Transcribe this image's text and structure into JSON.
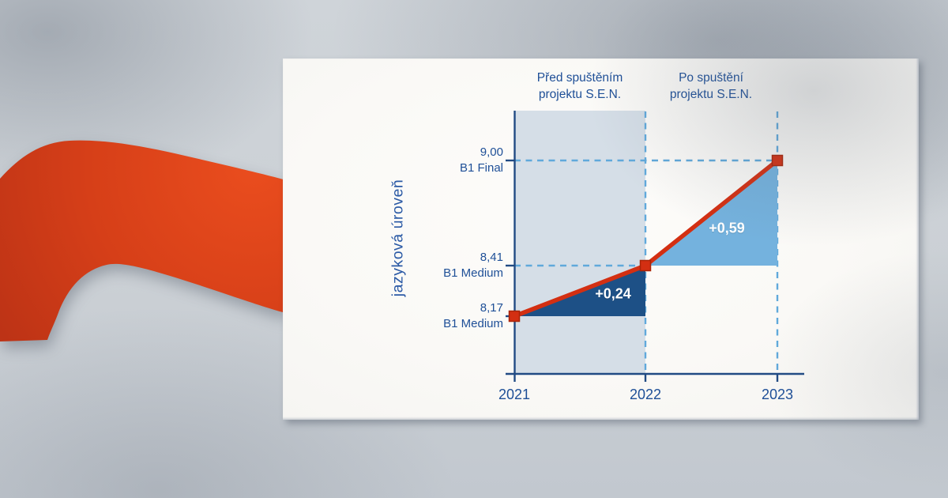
{
  "background": {
    "base_color": "#cbd0d5",
    "ribbon": {
      "name": "red-curved-ribbon",
      "color_bright": "#ea4d1e",
      "color_dark": "#bd3316"
    }
  },
  "card": {
    "bg_color": "#faf9f6"
  },
  "chart_data": {
    "type": "line",
    "title": "",
    "x": [
      "2021",
      "2022",
      "2023"
    ],
    "series": [
      {
        "name": "jazyková úroveň",
        "values": [
          8.17,
          8.41,
          9.0
        ]
      }
    ],
    "ylabel": "jazyková úroveň",
    "xlabel": "",
    "value_labels": [
      {
        "value": "8,17",
        "level": "B1 Medium"
      },
      {
        "value": "8,41",
        "level": "B1 Medium"
      },
      {
        "value": "9,00",
        "level": "B1 Final"
      }
    ],
    "phase_headers": [
      {
        "line1": "Před spuštěním",
        "line2": "projektu S.E.N."
      },
      {
        "line1": "Po spuštění",
        "line2": "projektu S.E.N."
      }
    ],
    "annotations": [
      {
        "label": "+0,24",
        "from": "2021",
        "to": "2022",
        "delta": 0.24
      },
      {
        "label": "+0,59",
        "from": "2022",
        "to": "2023",
        "delta": 0.59
      }
    ],
    "ylim": [
      8.0,
      9.3
    ],
    "grid": "dashed reference lines at data levels",
    "legend_position": "none",
    "colors": {
      "line": "#d32f12",
      "marker_fill": "#d32f12",
      "marker_border": "#a92408",
      "segment_2021_2022_fill": "#1d5086",
      "segment_2022_2023_fill": "#74b2de",
      "before_column_fill": "#d5dee7",
      "dashed_reference": "#60a9db",
      "axis": "#214b84",
      "text": "#1e4f97"
    }
  }
}
